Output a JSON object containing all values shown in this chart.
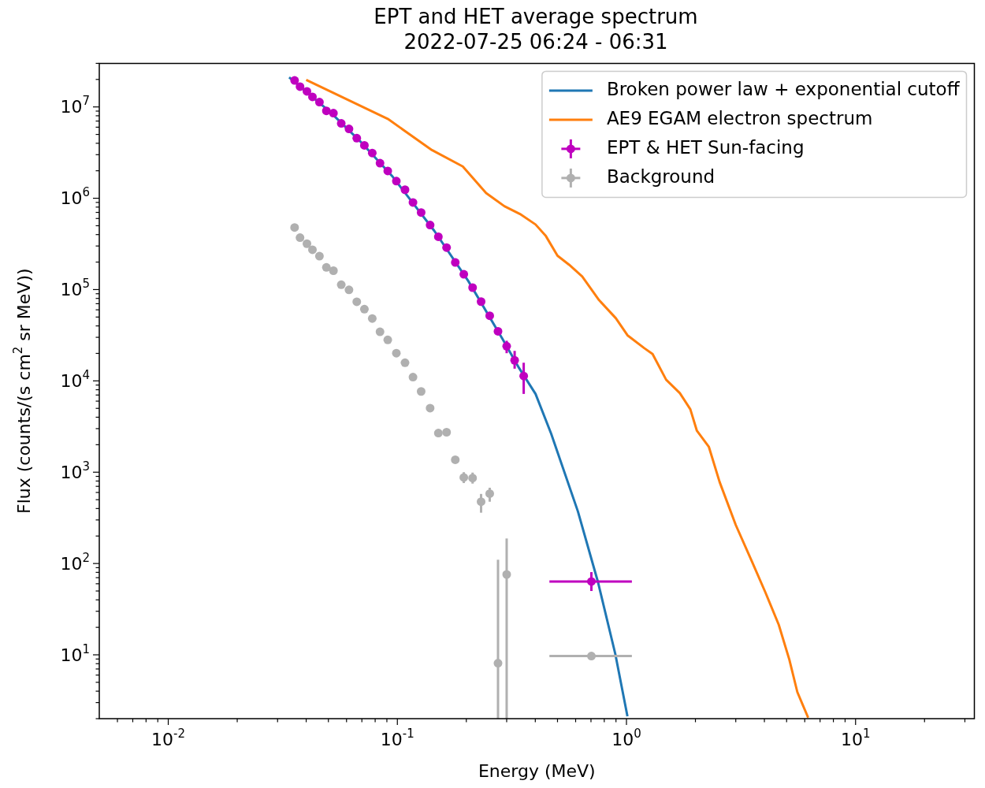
{
  "chart_data": {
    "type": "scatter",
    "title": "EPT and HET average spectrum",
    "subtitle": "2022-07-25 06:24 - 06:31",
    "xlabel": "Energy (MeV)",
    "ylabel": "Flux (counts/(s cm$^{2}$ sr MeV))",
    "log": "xy",
    "legend": "top right",
    "xlim": [
      0.005,
      33
    ],
    "ylim": [
      2,
      30000000
    ],
    "xticks": [
      {
        "value": 0.006,
        "label": null
      },
      {
        "value": 0.007,
        "label": null
      },
      {
        "value": 0.008,
        "label": null
      },
      {
        "value": 0.009,
        "label": null
      },
      {
        "value": 0.01,
        "label": "10$^{-2}$"
      },
      {
        "value": 0.02,
        "label": null
      },
      {
        "value": 0.03,
        "label": null
      },
      {
        "value": 0.04,
        "label": null
      },
      {
        "value": 0.05,
        "label": null
      },
      {
        "value": 0.06,
        "label": null
      },
      {
        "value": 0.07,
        "label": null
      },
      {
        "value": 0.08,
        "label": null
      },
      {
        "value": 0.09,
        "label": null
      },
      {
        "value": 0.1,
        "label": "10$^{-1}$"
      },
      {
        "value": 0.2,
        "label": null
      },
      {
        "value": 0.3,
        "label": null
      },
      {
        "value": 0.4,
        "label": null
      },
      {
        "value": 0.5,
        "label": null
      },
      {
        "value": 0.6,
        "label": null
      },
      {
        "value": 0.7,
        "label": null
      },
      {
        "value": 0.8,
        "label": null
      },
      {
        "value": 0.9,
        "label": null
      },
      {
        "value": 1,
        "label": "10$^{0}$"
      },
      {
        "value": 2,
        "label": null
      },
      {
        "value": 3,
        "label": null
      },
      {
        "value": 4,
        "label": null
      },
      {
        "value": 5,
        "label": null
      },
      {
        "value": 6,
        "label": null
      },
      {
        "value": 7,
        "label": null
      },
      {
        "value": 8,
        "label": null
      },
      {
        "value": 9,
        "label": null
      },
      {
        "value": 10,
        "label": "10$^{1}$"
      },
      {
        "value": 20,
        "label": null
      },
      {
        "value": 30,
        "label": null
      }
    ],
    "yticks": [
      {
        "value": 2,
        "label": null
      },
      {
        "value": 3,
        "label": null
      },
      {
        "value": 4,
        "label": null
      },
      {
        "value": 5,
        "label": null
      },
      {
        "value": 6,
        "label": null
      },
      {
        "value": 7,
        "label": null
      },
      {
        "value": 8,
        "label": null
      },
      {
        "value": 9,
        "label": null
      },
      {
        "value": 10,
        "label": "10$^{1}$"
      },
      {
        "value": 20,
        "label": null
      },
      {
        "value": 30,
        "label": null
      },
      {
        "value": 40,
        "label": null
      },
      {
        "value": 50,
        "label": null
      },
      {
        "value": 60,
        "label": null
      },
      {
        "value": 70,
        "label": null
      },
      {
        "value": 80,
        "label": null
      },
      {
        "value": 90,
        "label": null
      },
      {
        "value": 100,
        "label": "10$^{2}$"
      },
      {
        "value": 200,
        "label": null
      },
      {
        "value": 300,
        "label": null
      },
      {
        "value": 400,
        "label": null
      },
      {
        "value": 500,
        "label": null
      },
      {
        "value": 600,
        "label": null
      },
      {
        "value": 700,
        "label": null
      },
      {
        "value": 800,
        "label": null
      },
      {
        "value": 900,
        "label": null
      },
      {
        "value": 1000,
        "label": "10$^{3}$"
      },
      {
        "value": 2000,
        "label": null
      },
      {
        "value": 3000,
        "label": null
      },
      {
        "value": 4000,
        "label": null
      },
      {
        "value": 5000,
        "label": null
      },
      {
        "value": 6000,
        "label": null
      },
      {
        "value": 7000,
        "label": null
      },
      {
        "value": 8000,
        "label": null
      },
      {
        "value": 9000,
        "label": null
      },
      {
        "value": 10000,
        "label": "10$^{4}$"
      },
      {
        "value": 20000,
        "label": null
      },
      {
        "value": 30000,
        "label": null
      },
      {
        "value": 40000,
        "label": null
      },
      {
        "value": 50000,
        "label": null
      },
      {
        "value": 60000,
        "label": null
      },
      {
        "value": 70000,
        "label": null
      },
      {
        "value": 80000,
        "label": null
      },
      {
        "value": 90000,
        "label": null
      },
      {
        "value": 100000,
        "label": "10$^{5}$"
      },
      {
        "value": 200000,
        "label": null
      },
      {
        "value": 300000,
        "label": null
      },
      {
        "value": 400000,
        "label": null
      },
      {
        "value": 500000,
        "label": null
      },
      {
        "value": 600000,
        "label": null
      },
      {
        "value": 700000,
        "label": null
      },
      {
        "value": 800000,
        "label": null
      },
      {
        "value": 900000,
        "label": null
      },
      {
        "value": 1000000,
        "label": "10$^{6}$"
      },
      {
        "value": 2000000,
        "label": null
      },
      {
        "value": 3000000,
        "label": null
      },
      {
        "value": 4000000,
        "label": null
      },
      {
        "value": 5000000,
        "label": null
      },
      {
        "value": 6000000,
        "label": null
      },
      {
        "value": 7000000,
        "label": null
      },
      {
        "value": 8000000,
        "label": null
      },
      {
        "value": 9000000,
        "label": null
      },
      {
        "value": 10000000,
        "label": "10$^{7}$"
      },
      {
        "value": 20000000,
        "label": null
      },
      {
        "value": 30000000,
        "label": null
      }
    ],
    "series": [
      {
        "name": "Broken power law + exponential cutoff",
        "type": "line",
        "marker": "none",
        "color": "#1f77b4",
        "x": [
          0.0337,
          0.0509,
          0.0691,
          0.0949,
          0.145,
          0.204,
          0.2875,
          0.34,
          0.401,
          0.469,
          0.614,
          0.75,
          0.894,
          1.01
        ],
        "values": [
          21100000,
          8800000,
          4160000,
          1750000,
          439000,
          124000,
          28900,
          13800,
          7200,
          2650,
          371,
          63.5,
          10.2,
          2.12
        ]
      },
      {
        "name": "AE9 EGAM electron spectrum",
        "type": "line",
        "marker": "none",
        "color": "#ff7f0e",
        "x": [
          0.04,
          0.0908,
          0.1415,
          0.193,
          0.244,
          0.293,
          0.343,
          0.401,
          0.445,
          0.5,
          0.562,
          0.641,
          0.759,
          0.899,
          1.01,
          1.197,
          1.3,
          1.49,
          1.71,
          1.9,
          2.03,
          2.29,
          2.55,
          3.0,
          3.53,
          4.04,
          4.62,
          5.14,
          5.57,
          6.21
        ],
        "values": [
          19800000,
          7400000,
          3370000,
          2230000,
          1140000,
          819000,
          672000,
          516000,
          385000,
          235000,
          187000,
          139000,
          76700,
          48500,
          31600,
          22800,
          19700,
          10300,
          7350,
          4890,
          2840,
          1890,
          782,
          264,
          105,
          48.3,
          21.4,
          8.85,
          3.91,
          2.05
        ]
      },
      {
        "name": "EPT & HET Sun-facing",
        "marker": "circle",
        "color": "#bf00bf",
        "x": [
          0.0356,
          0.0376,
          0.0403,
          0.0426,
          0.0457,
          0.049,
          0.0526,
          0.0569,
          0.0615,
          0.0665,
          0.0718,
          0.0777,
          0.084,
          0.0908,
          0.099,
          0.108,
          0.117,
          0.127,
          0.139,
          0.151,
          0.164,
          0.179,
          0.195,
          0.213,
          0.232,
          0.253,
          0.275,
          0.3,
          0.325,
          0.356,
          0.703
        ],
        "values": [
          19500000,
          16700000,
          14800000,
          12900000,
          11300000,
          9060000,
          8550000,
          6610000,
          5750000,
          4550000,
          3800000,
          3130000,
          2420000,
          1990000,
          1540000,
          1240000,
          900000,
          698000,
          509000,
          379000,
          288000,
          198000,
          147000,
          105000,
          73800,
          51700,
          34900,
          24000,
          16800,
          11300,
          63.5
        ],
        "errors": [
          null,
          null,
          null,
          null,
          null,
          null,
          null,
          null,
          null,
          null,
          null,
          null,
          null,
          null,
          null,
          null,
          null,
          null,
          null,
          null,
          null,
          null,
          null,
          null,
          null,
          null,
          null,
          [
            20100,
            27500
          ],
          [
            13600,
            21300
          ],
          [
            7200,
            15800
          ],
          [
            50,
            80.5
          ]
        ],
        "xerrors": [
          null,
          null,
          null,
          null,
          null,
          null,
          null,
          null,
          null,
          null,
          null,
          null,
          null,
          null,
          null,
          null,
          null,
          null,
          null,
          null,
          null,
          null,
          null,
          null,
          null,
          null,
          null,
          null,
          null,
          null,
          [
            0.461,
            1.056
          ]
        ]
      },
      {
        "name": "Background",
        "marker": "circle",
        "color": "#b0b0b0",
        "x": [
          0.0356,
          0.0376,
          0.0403,
          0.0426,
          0.0457,
          0.049,
          0.0526,
          0.0569,
          0.0615,
          0.0665,
          0.0718,
          0.0777,
          0.084,
          0.0908,
          0.099,
          0.108,
          0.117,
          0.127,
          0.139,
          0.151,
          0.164,
          0.179,
          0.195,
          0.213,
          0.232,
          0.253,
          0.275,
          0.3,
          0.703
        ],
        "values": [
          478000,
          370000,
          318000,
          273000,
          232000,
          175000,
          161000,
          113000,
          99300,
          73500,
          61000,
          48200,
          34500,
          28100,
          20100,
          15800,
          11000,
          7660,
          5030,
          2680,
          2740,
          1370,
          875,
          863,
          475,
          582,
          8.1,
          75.9,
          9.7
        ],
        "errors": [
          null,
          null,
          null,
          null,
          null,
          null,
          null,
          null,
          null,
          null,
          null,
          null,
          null,
          null,
          null,
          null,
          null,
          null,
          null,
          null,
          null,
          null,
          [
            760,
            1000
          ],
          [
            750,
            990
          ],
          [
            360,
            578
          ],
          [
            475,
            676
          ],
          [
            2,
            110
          ],
          [
            2,
            188
          ],
          null
        ],
        "xerrors": [
          null,
          null,
          null,
          null,
          null,
          null,
          null,
          null,
          null,
          null,
          null,
          null,
          null,
          null,
          null,
          null,
          null,
          null,
          null,
          null,
          null,
          null,
          null,
          null,
          null,
          null,
          null,
          null,
          [
            0.461,
            1.056
          ]
        ]
      }
    ]
  }
}
